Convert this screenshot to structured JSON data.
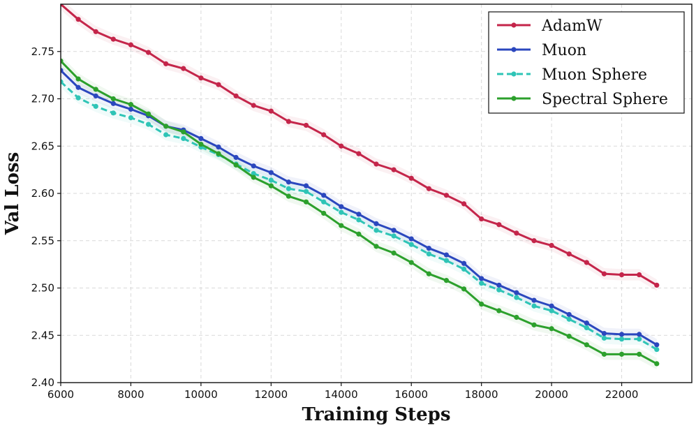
{
  "chart_data": {
    "type": "line",
    "title": "",
    "xlabel": "Training Steps",
    "ylabel": "Val Loss",
    "xlim": [
      6000,
      24000
    ],
    "ylim": [
      2.4,
      2.8
    ],
    "xticks": [
      6000,
      8000,
      10000,
      12000,
      14000,
      16000,
      18000,
      20000,
      22000
    ],
    "yticks": [
      2.4,
      2.45,
      2.5,
      2.55,
      2.6,
      2.65,
      2.7,
      2.75
    ],
    "grid": true,
    "legend_position": "top-right",
    "x": [
      6000,
      6500,
      7000,
      7500,
      8000,
      8500,
      9000,
      9500,
      10000,
      10500,
      11000,
      11500,
      12000,
      12500,
      13000,
      13500,
      14000,
      14500,
      15000,
      15500,
      16000,
      16500,
      17000,
      17500,
      18000,
      18500,
      19000,
      19500,
      20000,
      20500,
      21000,
      21500,
      22000,
      22500,
      23000
    ],
    "series": [
      {
        "name": "AdamW",
        "color": "#c4254a",
        "dash": "solid",
        "values": [
          2.8,
          2.784,
          2.771,
          2.763,
          2.757,
          2.749,
          2.737,
          2.732,
          2.722,
          2.715,
          2.703,
          2.693,
          2.687,
          2.676,
          2.672,
          2.662,
          2.65,
          2.642,
          2.631,
          2.625,
          2.616,
          2.605,
          2.598,
          2.589,
          2.573,
          2.567,
          2.558,
          2.55,
          2.545,
          2.536,
          2.527,
          2.515,
          2.514,
          2.514,
          2.503
        ]
      },
      {
        "name": "Muon",
        "color": "#2b47be",
        "dash": "solid",
        "values": [
          2.73,
          2.712,
          2.703,
          2.695,
          2.689,
          2.682,
          2.671,
          2.667,
          2.658,
          2.649,
          2.638,
          2.629,
          2.622,
          2.612,
          2.608,
          2.598,
          2.586,
          2.578,
          2.568,
          2.561,
          2.552,
          2.542,
          2.535,
          2.526,
          2.51,
          2.503,
          2.495,
          2.487,
          2.481,
          2.472,
          2.463,
          2.452,
          2.451,
          2.451,
          2.44
        ]
      },
      {
        "name": "Muon Sphere",
        "color": "#2ec4b6",
        "dash": "dashed",
        "values": [
          2.718,
          2.701,
          2.692,
          2.685,
          2.68,
          2.673,
          2.662,
          2.658,
          2.649,
          2.641,
          2.631,
          2.621,
          2.614,
          2.605,
          2.602,
          2.591,
          2.58,
          2.572,
          2.561,
          2.555,
          2.546,
          2.536,
          2.529,
          2.52,
          2.505,
          2.498,
          2.49,
          2.481,
          2.476,
          2.467,
          2.458,
          2.447,
          2.446,
          2.446,
          2.435
        ]
      },
      {
        "name": "Spectral Sphere",
        "color": "#2ca02c",
        "dash": "solid",
        "values": [
          2.74,
          2.721,
          2.71,
          2.7,
          2.694,
          2.684,
          2.671,
          2.665,
          2.652,
          2.642,
          2.63,
          2.617,
          2.608,
          2.597,
          2.591,
          2.579,
          2.566,
          2.557,
          2.544,
          2.537,
          2.527,
          2.515,
          2.508,
          2.499,
          2.483,
          2.476,
          2.469,
          2.461,
          2.457,
          2.449,
          2.44,
          2.43,
          2.43,
          2.43,
          2.42
        ]
      }
    ]
  }
}
